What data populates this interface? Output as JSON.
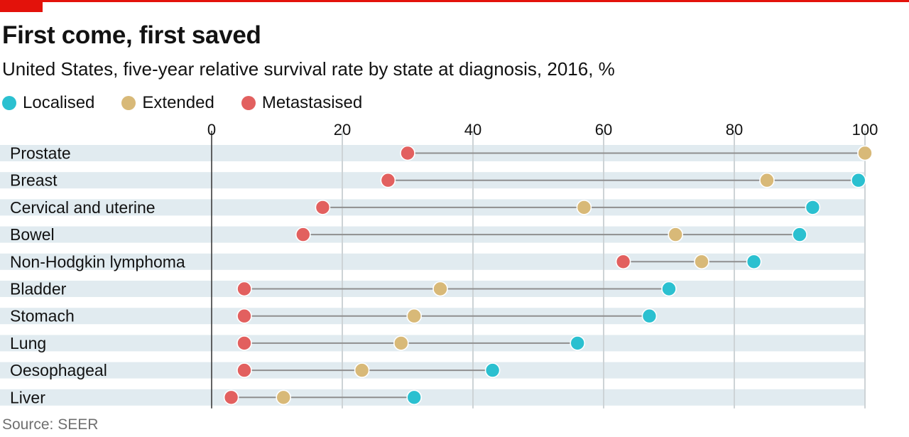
{
  "header": {
    "title": "First come, first saved",
    "subtitle": "United States, five-year relative survival rate by state at diagnosis, 2016, %"
  },
  "legend": [
    {
      "label": "Localised",
      "color": "#2bc0d0"
    },
    {
      "label": "Extended",
      "color": "#d8b978"
    },
    {
      "label": "Metastasised",
      "color": "#e2605f"
    }
  ],
  "source": "Source: SEER",
  "chart_data": {
    "type": "dot-range",
    "title": "First come, first saved",
    "subtitle": "United States, five-year relative survival rate by state at diagnosis, 2016, %",
    "xlim": [
      0,
      100
    ],
    "xticks": [
      0,
      20,
      40,
      60,
      80,
      100
    ],
    "grid": true,
    "legend_position": "top-left",
    "categories": [
      "Prostate",
      "Breast",
      "Cervical and uterine",
      "Bowel",
      "Non-Hodgkin lymphoma",
      "Bladder",
      "Stomach",
      "Lung",
      "Oesophageal",
      "Liver"
    ],
    "series": [
      {
        "name": "Localised",
        "color": "#2bc0d0",
        "values": [
          100,
          99,
          92,
          90,
          83,
          70,
          67,
          56,
          43,
          31
        ]
      },
      {
        "name": "Extended",
        "color": "#d8b978",
        "values": [
          100,
          85,
          57,
          71,
          75,
          35,
          31,
          29,
          23,
          11
        ]
      },
      {
        "name": "Metastasised",
        "color": "#e2605f",
        "values": [
          30,
          27,
          17,
          14,
          63,
          5,
          5,
          5,
          5,
          3
        ]
      }
    ]
  }
}
